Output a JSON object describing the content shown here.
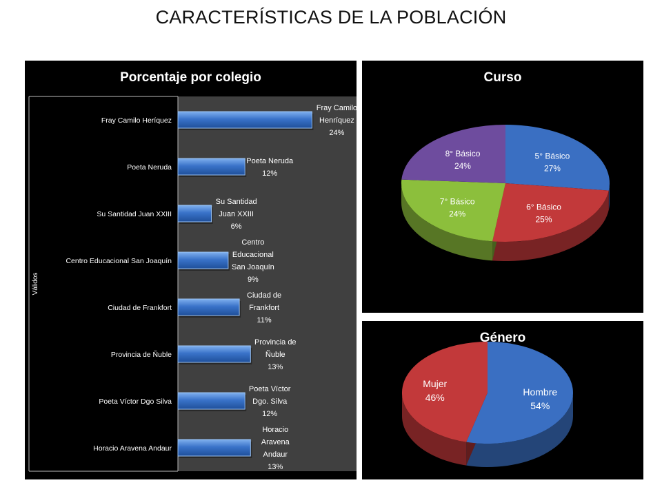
{
  "page": {
    "title": "CARACTERÍSTICAS DE LA POBLACIÓN"
  },
  "chart_data": [
    {
      "type": "bar",
      "title": "Porcentaje por colegio",
      "ylabel": "Válidos",
      "categories": [
        "Fray Camilo Heríquez",
        "Poeta Neruda",
        "Su Santidad Juan XXIII",
        "Centro Educacional San Joaquín",
        "Ciudad de Frankfort",
        "Provincia de Ñuble",
        "Poeta Víctor Dgo Silva",
        "Horacio Aravena Andaur"
      ],
      "values": [
        24,
        12,
        6,
        9,
        11,
        13,
        12,
        13
      ],
      "data_labels": [
        [
          "Fray Camilo",
          "Henríquez",
          "24%"
        ],
        [
          "Poeta Neruda",
          "12%"
        ],
        [
          "Su Santidad",
          "Juan XXIII",
          "6%"
        ],
        [
          "Centro",
          "Educacional",
          "San Joaquín",
          "9%"
        ],
        [
          "Ciudad de",
          "Frankfort",
          "11%"
        ],
        [
          "Provincia de",
          "Ñuble",
          "13%"
        ],
        [
          "Poeta Víctor",
          "Dgo. Silva",
          "12%"
        ],
        [
          "Horacio",
          "Aravena",
          "Andaur",
          "13%"
        ]
      ],
      "orientation": "horizontal",
      "colors": {
        "bar": "#3a73c9",
        "plot_bg": "#404040",
        "panel_bg": "#000000"
      }
    },
    {
      "type": "pie",
      "title": "Curso",
      "labels": [
        "5° Básico",
        "6° Básico",
        "7° Básico",
        "8° Básico"
      ],
      "values": [
        27,
        25,
        24,
        24
      ],
      "value_labels": [
        "27%",
        "25%",
        "24%",
        "24%"
      ],
      "colors": [
        "#3a6fc2",
        "#c2393a",
        "#8cbf3c",
        "#6e4c9e"
      ]
    },
    {
      "type": "pie",
      "title": "Género",
      "labels": [
        "Hombre",
        "Mujer"
      ],
      "values": [
        54,
        46
      ],
      "value_labels": [
        "54%",
        "46%"
      ],
      "colors": [
        "#3a6fc2",
        "#c2393a"
      ]
    }
  ]
}
